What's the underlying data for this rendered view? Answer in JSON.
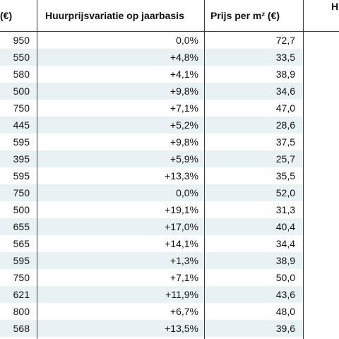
{
  "table": {
    "headers": {
      "price": "(€)",
      "variation": "Huurprijsvariatie op jaarbasis",
      "per_m2": "Prijs per m² (€)",
      "next": "H"
    },
    "rows": [
      {
        "price": "950",
        "variation": "0,0%",
        "per_m2": "72,7"
      },
      {
        "price": "550",
        "variation": "+4,8%",
        "per_m2": "33,5"
      },
      {
        "price": "580",
        "variation": "+4,1%",
        "per_m2": "38,9"
      },
      {
        "price": "500",
        "variation": "+9,8%",
        "per_m2": "34,6"
      },
      {
        "price": "750",
        "variation": "+7,1%",
        "per_m2": "47,0"
      },
      {
        "price": "445",
        "variation": "+5,2%",
        "per_m2": "28,6"
      },
      {
        "price": "595",
        "variation": "+9,8%",
        "per_m2": "37,5"
      },
      {
        "price": "395",
        "variation": "+5,9%",
        "per_m2": "25,7"
      },
      {
        "price": "595",
        "variation": "+13,3%",
        "per_m2": "35,5"
      },
      {
        "price": "750",
        "variation": "0,0%",
        "per_m2": "52,0"
      },
      {
        "price": "500",
        "variation": "+19,1%",
        "per_m2": "31,3"
      },
      {
        "price": "655",
        "variation": "+17,0%",
        "per_m2": "40,4"
      },
      {
        "price": "565",
        "variation": "+14,1%",
        "per_m2": "34,4"
      },
      {
        "price": "595",
        "variation": "+1,3%",
        "per_m2": "38,9"
      },
      {
        "price": "750",
        "variation": "+7,1%",
        "per_m2": "50,0"
      },
      {
        "price": "621",
        "variation": "+11,9%",
        "per_m2": "43,6"
      },
      {
        "price": "800",
        "variation": "+6,7%",
        "per_m2": "48,0"
      },
      {
        "price": "568",
        "variation": "+13,5%",
        "per_m2": "39,6"
      }
    ]
  },
  "colors": {
    "row_shade": "#e8f1f4",
    "grid_line": "#3a3a3a"
  }
}
